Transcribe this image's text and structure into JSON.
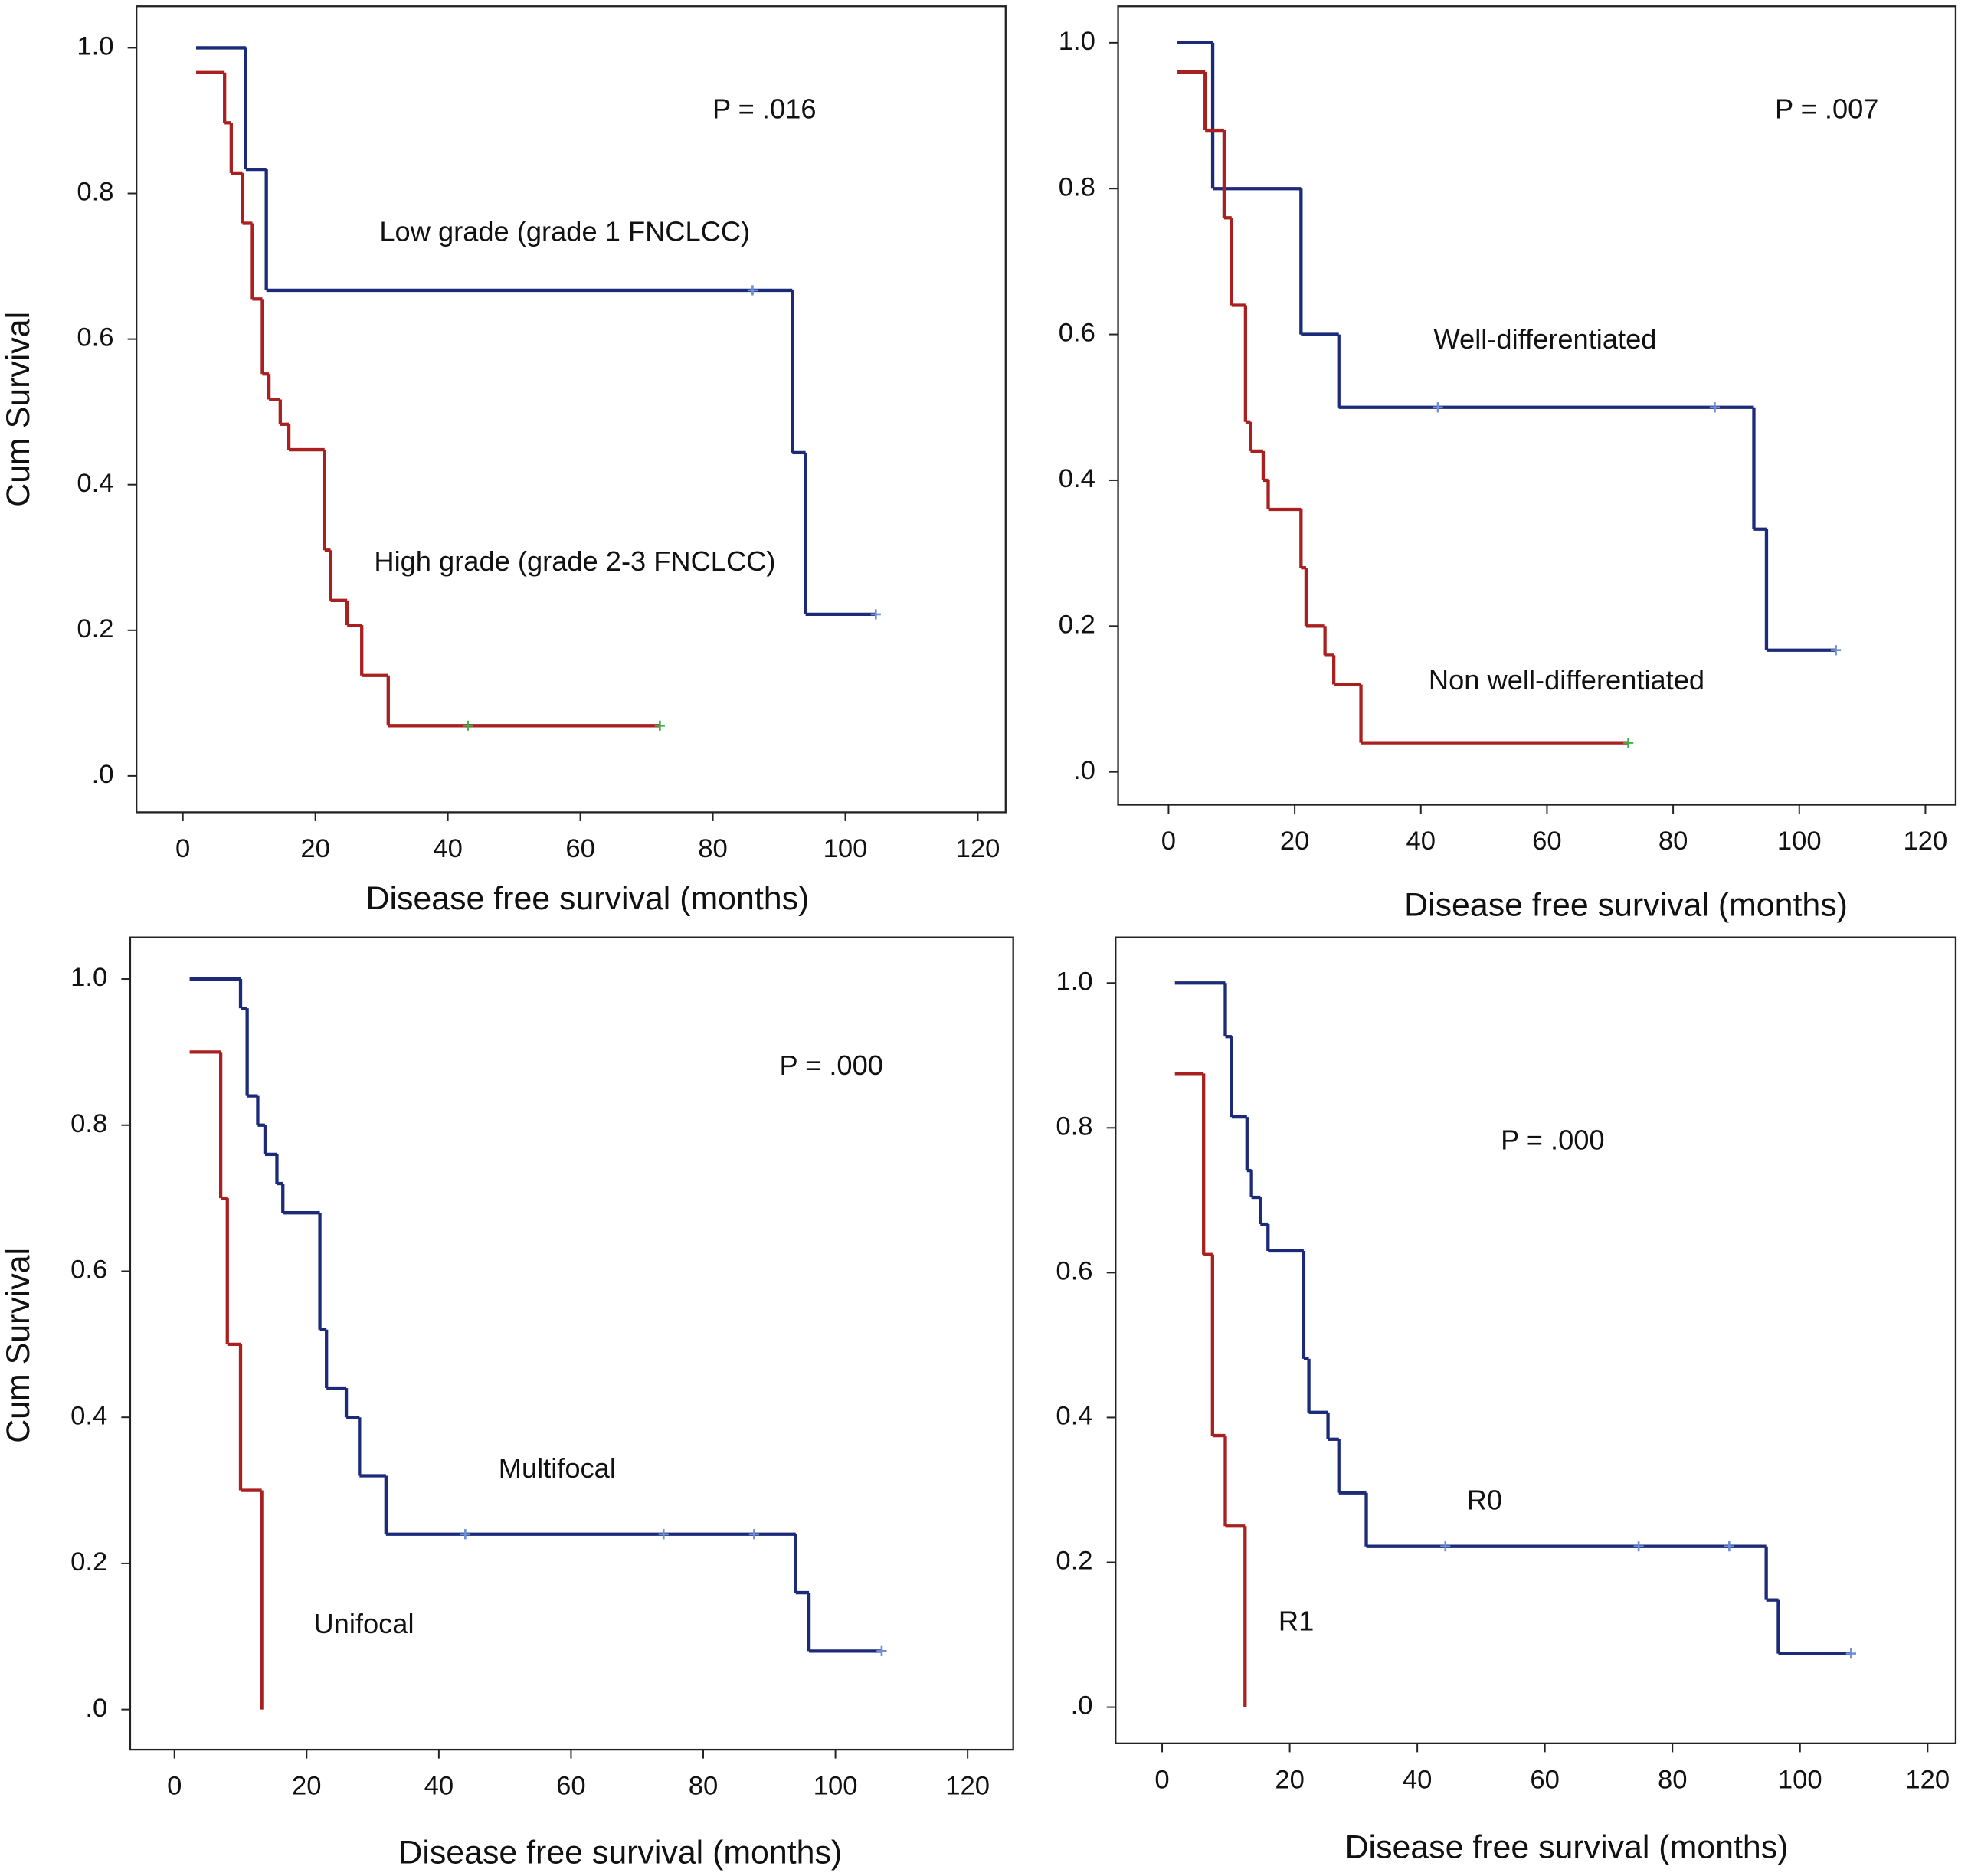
{
  "chart_data": [
    {
      "type": "line",
      "step": true,
      "ylabel": "Cum Survival",
      "xlabel": "Disease free survival (months)",
      "annotations": [
        "P = .016"
      ],
      "xlim": [
        -7,
        124.2
      ],
      "ylim": [
        -0.05,
        1.057
      ],
      "xticks": [
        0,
        20,
        40,
        60,
        80,
        100,
        120
      ],
      "yticks": [
        {
          "value": 0,
          "label": ".0"
        },
        0.2,
        0.4,
        0.6,
        0.8,
        {
          "value": 1,
          "label": "1.0"
        }
      ],
      "series": [
        {
          "name": "Low grade (grade 1 FNCLCC)",
          "color": "#1c2a7a",
          "censor_color": "#6d8fd6",
          "x": [
            2,
            9.5,
            12.6,
            92,
            94,
            104.6
          ],
          "values": [
            1.0,
            0.833,
            0.667,
            0.444,
            0.222,
            0.222
          ],
          "censor_x": [
            86,
            104.6
          ],
          "censor_values": [
            0.667,
            0.222
          ]
        },
        {
          "name": "High grade (grade 2-3 FNCLCC)",
          "color": "#a8201f",
          "censor_color": "#3cb043",
          "x": [
            2,
            6.3,
            7.3,
            9,
            10.5,
            12,
            13,
            14.7,
            16,
            21.4,
            22.3,
            24.8,
            27,
            31,
            72
          ],
          "values": [
            0.966,
            0.897,
            0.828,
            0.759,
            0.655,
            0.552,
            0.517,
            0.483,
            0.448,
            0.31,
            0.241,
            0.207,
            0.138,
            0.069,
            0.069
          ],
          "censor_x": [
            43,
            72
          ],
          "censor_values": [
            0.069,
            0.069
          ]
        }
      ]
    },
    {
      "type": "line",
      "step": true,
      "xlabel": "Disease free survival (months)",
      "annotations": [
        "P = .007"
      ],
      "xlim": [
        -8,
        124.8
      ],
      "ylim": [
        -0.045,
        1.05
      ],
      "xticks": [
        0,
        20,
        40,
        60,
        80,
        100,
        120
      ],
      "yticks": [
        {
          "value": 0,
          "label": ".0"
        },
        0.2,
        0.4,
        0.6,
        0.8,
        {
          "value": 1,
          "label": "1.0"
        }
      ],
      "series": [
        {
          "name": "Well-differentiated",
          "color": "#1c2a7a",
          "censor_color": "#6d8fd6",
          "x": [
            1.4,
            7,
            21,
            27,
            92.8,
            94.8,
            105.8
          ],
          "values": [
            1.0,
            0.8,
            0.6,
            0.5,
            0.333,
            0.167,
            0.167
          ],
          "censor_x": [
            42.7,
            86.6,
            105.8
          ],
          "censor_values": [
            0.5,
            0.5,
            0.167
          ]
        },
        {
          "name": "Non well-differentiated",
          "color": "#a8201f",
          "censor_color": "#3cb043",
          "x": [
            1.4,
            5.8,
            8.8,
            10,
            12.2,
            13,
            15,
            15.8,
            21,
            21.8,
            24.8,
            26.2,
            30.5,
            72.9
          ],
          "values": [
            0.96,
            0.88,
            0.76,
            0.64,
            0.48,
            0.44,
            0.4,
            0.36,
            0.28,
            0.2,
            0.16,
            0.12,
            0.04,
            0.04
          ],
          "censor_x": [
            72.9
          ],
          "censor_values": [
            0.04
          ]
        }
      ]
    },
    {
      "type": "line",
      "step": true,
      "ylabel": "Cum Survival",
      "xlabel": "Disease free survival (months)",
      "annotations": [
        "P = .000"
      ],
      "xlim": [
        -6.7,
        126.9
      ],
      "ylim": [
        -0.055,
        1.057
      ],
      "xticks": [
        0,
        20,
        40,
        60,
        80,
        100,
        120
      ],
      "yticks": [
        {
          "value": 0,
          "label": ".0"
        },
        0.2,
        0.4,
        0.6,
        0.8,
        {
          "value": 1,
          "label": "1.0"
        }
      ],
      "series": [
        {
          "name": "Multifocal",
          "color": "#1c2a7a",
          "censor_color": "#6d8fd6",
          "x": [
            2.3,
            10,
            11,
            12.6,
            13.7,
            15.5,
            16.4,
            22,
            23,
            26,
            28,
            32,
            94,
            96,
            107
          ],
          "values": [
            1.0,
            0.96,
            0.84,
            0.8,
            0.76,
            0.72,
            0.68,
            0.52,
            0.44,
            0.4,
            0.32,
            0.24,
            0.16,
            0.08,
            0.08
          ],
          "censor_x": [
            44,
            74,
            87.7,
            107
          ],
          "censor_values": [
            0.24,
            0.24,
            0.24,
            0.08
          ]
        },
        {
          "name": "Unifocal",
          "color": "#a8201f",
          "censor_color": "#3cb043",
          "x": [
            2.3,
            7,
            8,
            10,
            13.2
          ],
          "values": [
            0.9,
            0.7,
            0.5,
            0.3,
            0
          ],
          "censor_x": [],
          "censor_values": []
        }
      ]
    },
    {
      "type": "line",
      "step": true,
      "xlabel": "Disease free survival (months)",
      "annotations": [
        "P = .000"
      ],
      "xlim": [
        -7.3,
        124.4
      ],
      "ylim": [
        -0.05,
        1.063
      ],
      "xticks": [
        0,
        20,
        40,
        60,
        80,
        100,
        120
      ],
      "yticks": [
        {
          "value": 0,
          "label": ".0"
        },
        0.2,
        0.4,
        0.6,
        0.8,
        {
          "value": 1,
          "label": "1.0"
        }
      ],
      "series": [
        {
          "name": "R0",
          "color": "#1c2a7a",
          "censor_color": "#6d8fd6",
          "x": [
            2,
            9.9,
            10.9,
            13.3,
            14,
            15.4,
            16.6,
            22.2,
            23,
            26,
            27.7,
            32,
            94.7,
            96.6,
            108
          ],
          "values": [
            1.0,
            0.926,
            0.815,
            0.741,
            0.704,
            0.667,
            0.63,
            0.481,
            0.407,
            0.37,
            0.296,
            0.222,
            0.148,
            0.074,
            0.074
          ],
          "censor_x": [
            44.4,
            74.7,
            88.9,
            108
          ],
          "censor_values": [
            0.222,
            0.222,
            0.222,
            0.074
          ]
        },
        {
          "name": "R1",
          "color": "#a8201f",
          "censor_color": "#3cb043",
          "x": [
            2,
            6.5,
            7.9,
            9.9,
            13
          ],
          "values": [
            0.875,
            0.625,
            0.375,
            0.25,
            0
          ],
          "censor_x": [],
          "censor_values": []
        }
      ]
    }
  ]
}
